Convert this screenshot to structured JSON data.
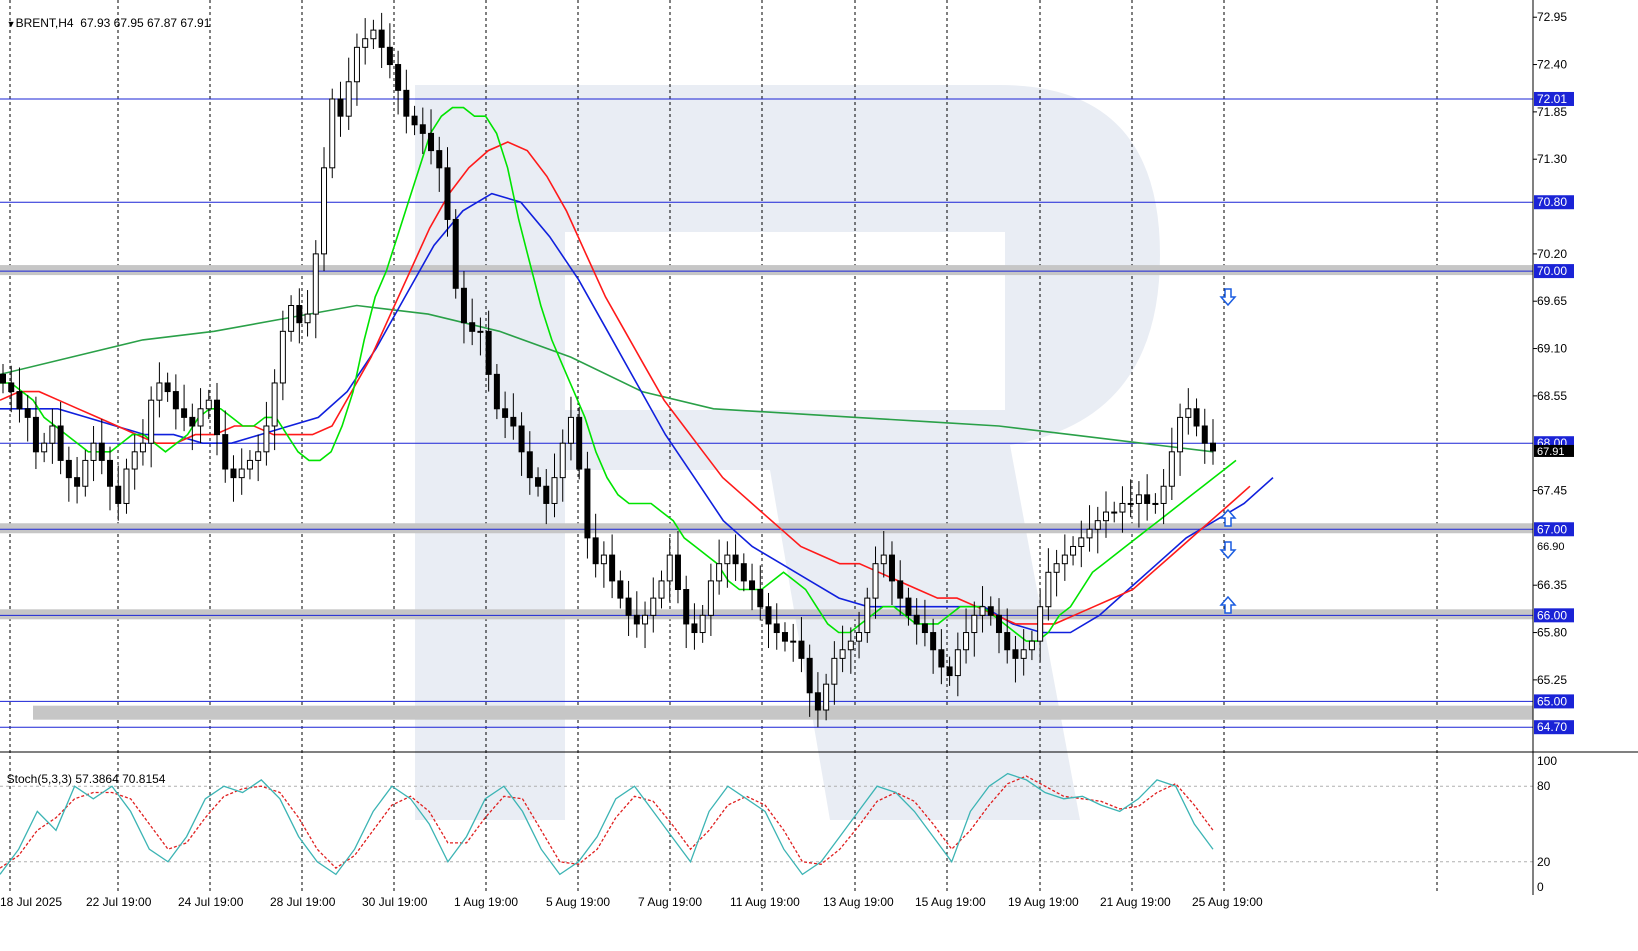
{
  "header": {
    "arrow": "▼",
    "symbol": "BRENT,H4",
    "ohlc": "67.93 67.95 67.87 67.91"
  },
  "indicator": {
    "label": "Stoch(5,3,3)",
    "values": "57.3864 70.8154"
  },
  "colors": {
    "grid_dash": "#000000",
    "hline": "#1a23d6",
    "zone": "#c6c6c6",
    "bull_fill": "#ffffff",
    "bear_fill": "#000000",
    "ma_green": "#00e400",
    "ma_red": "#ff1a1a",
    "ma_blue": "#1020dd",
    "ma_long": "#2aa048",
    "stoch_main": "#3cb4b4",
    "stoch_signal": "#e02020",
    "arrow": "#1a5ce0",
    "watermark": "#e9edf4"
  },
  "chart_data": {
    "type": "candlestick",
    "symbol": "BRENT",
    "timeframe": "H4",
    "y_ticks": [
      "72.95",
      "72.40",
      "71.85",
      "71.30",
      "70.20",
      "69.65",
      "69.10",
      "68.55",
      "67.45",
      "66.35",
      "65.80",
      "65.25"
    ],
    "ylim": [
      64.47,
      73.15
    ],
    "x_ticks": [
      "18 Jul 2025",
      "22 Jul 19:00",
      "24 Jul 19:00",
      "28 Jul 19:00",
      "30 Jul 19:00",
      "1 Aug 19:00",
      "5 Aug 19:00",
      "7 Aug 19:00",
      "11 Aug 19:00",
      "13 Aug 19:00",
      "15 Aug 19:00",
      "19 Aug 19:00",
      "21 Aug 19:00",
      "25 Aug 19:00"
    ],
    "levels": [
      {
        "value": 72.0,
        "label": "72.01",
        "type": "line"
      },
      {
        "value": 70.8,
        "label": "70.80",
        "type": "line"
      },
      {
        "value": 70.0,
        "label": "70.00",
        "type": "zone"
      },
      {
        "value": 68.0,
        "label": "68.00",
        "type": "line"
      },
      {
        "value": 67.0,
        "label": "67.00",
        "type": "zone"
      },
      {
        "value": 66.0,
        "label": "66.00",
        "type": "zone"
      },
      {
        "value": 65.0,
        "label": "65.00",
        "type": "line"
      },
      {
        "value": 64.7,
        "label": "64.70",
        "type": "line"
      }
    ],
    "current_price": "67.91",
    "extra_axis_label": "66.90",
    "candles_close": [
      68.7,
      68.6,
      68.4,
      68.3,
      67.9,
      68.0,
      68.2,
      67.8,
      67.6,
      67.5,
      67.8,
      68.0,
      67.8,
      67.5,
      67.3,
      67.7,
      67.9,
      68.0,
      68.5,
      68.7,
      68.6,
      68.4,
      68.3,
      68.2,
      68.4,
      68.5,
      68.1,
      67.7,
      67.6,
      67.7,
      67.8,
      67.9,
      68.2,
      68.7,
      69.3,
      69.6,
      69.4,
      69.5,
      70.2,
      71.2,
      72.0,
      71.8,
      72.2,
      72.6,
      72.7,
      72.8,
      72.6,
      72.4,
      72.1,
      71.8,
      71.7,
      71.6,
      71.4,
      71.2,
      70.6,
      69.8,
      69.4,
      69.3,
      69.3,
      68.8,
      68.4,
      68.3,
      68.2,
      67.9,
      67.6,
      67.5,
      67.3,
      67.6,
      68.0,
      68.3,
      67.7,
      66.9,
      66.6,
      66.7,
      66.4,
      66.2,
      66.0,
      65.9,
      66.0,
      66.2,
      66.4,
      66.7,
      66.3,
      65.9,
      65.8,
      66.0,
      66.4,
      66.6,
      66.7,
      66.6,
      66.4,
      66.3,
      66.1,
      65.9,
      65.8,
      65.7,
      65.7,
      65.5,
      65.1,
      64.9,
      65.2,
      65.5,
      65.6,
      65.7,
      65.8,
      66.2,
      66.6,
      66.7,
      66.4,
      66.2,
      66.0,
      65.9,
      65.8,
      65.6,
      65.4,
      65.3,
      65.6,
      65.8,
      66.0,
      66.1,
      66.0,
      65.8,
      65.6,
      65.5,
      65.6,
      65.7,
      66.1,
      66.5,
      66.6,
      66.7,
      66.8,
      66.9,
      67.0,
      67.1,
      67.2,
      67.2,
      67.3,
      67.3,
      67.4,
      67.3,
      67.3,
      67.5,
      67.9,
      68.3,
      68.4,
      68.2,
      68.0,
      67.91
    ],
    "ma_green": [
      68.7,
      68.7,
      68.6,
      68.5,
      68.3,
      68.2,
      68.1,
      68.0,
      67.9,
      67.9,
      67.9,
      68.0,
      68.1,
      68.1,
      68.0,
      67.9,
      68.0,
      68.1,
      68.3,
      68.4,
      68.4,
      68.3,
      68.2,
      68.2,
      68.3,
      68.3,
      68.1,
      67.9,
      67.8,
      67.8,
      67.9,
      68.2,
      68.6,
      69.2,
      69.7,
      70.0,
      70.4,
      70.8,
      71.2,
      71.6,
      71.8,
      71.9,
      71.9,
      71.8,
      71.8,
      71.6,
      71.2,
      70.6,
      70.1,
      69.6,
      69.2,
      68.9,
      68.6,
      68.3,
      67.9,
      67.6,
      67.4,
      67.3,
      67.3,
      67.3,
      67.2,
      67.1,
      66.9,
      66.8,
      66.7,
      66.6,
      66.4,
      66.3,
      66.3,
      66.3,
      66.4,
      66.5,
      66.4,
      66.3,
      66.1,
      65.9,
      65.8,
      65.8,
      65.9,
      66.0,
      66.1,
      66.1,
      66.0,
      65.9,
      65.9,
      65.9,
      66.0,
      66.1,
      66.1,
      66.1,
      66.0,
      65.9,
      65.8,
      65.7,
      65.7,
      65.8,
      66.0,
      66.1,
      66.3,
      66.5,
      66.6,
      66.7,
      66.8,
      66.9,
      67.0,
      67.1,
      67.2,
      67.3,
      67.4,
      67.5,
      67.6,
      67.7,
      67.8
    ],
    "ma_red": [
      68.5,
      68.6,
      68.6,
      68.5,
      68.4,
      68.3,
      68.2,
      68.1,
      68.0,
      68.0,
      68.1,
      68.1,
      68.2,
      68.2,
      68.1,
      68.1,
      68.1,
      68.2,
      68.6,
      69.0,
      69.5,
      70.0,
      70.5,
      70.9,
      71.2,
      71.4,
      71.5,
      71.4,
      71.1,
      70.7,
      70.2,
      69.7,
      69.3,
      68.9,
      68.5,
      68.2,
      67.9,
      67.6,
      67.4,
      67.2,
      67.0,
      66.8,
      66.7,
      66.6,
      66.6,
      66.5,
      66.4,
      66.3,
      66.2,
      66.2,
      66.1,
      66.0,
      65.9,
      65.9,
      65.9,
      66.0,
      66.1,
      66.2,
      66.3,
      66.5,
      66.7,
      66.9,
      67.1,
      67.3,
      67.5
    ],
    "ma_blue": [
      68.4,
      68.4,
      68.4,
      68.3,
      68.2,
      68.1,
      68.1,
      68.0,
      68.0,
      68.1,
      68.2,
      68.3,
      68.6,
      69.1,
      69.7,
      70.3,
      70.7,
      70.9,
      70.8,
      70.4,
      69.9,
      69.3,
      68.7,
      68.1,
      67.6,
      67.1,
      66.8,
      66.6,
      66.4,
      66.2,
      66.1,
      66.1,
      66.1,
      66.1,
      66.1,
      65.9,
      65.8,
      65.8,
      66.0,
      66.3,
      66.6,
      66.9,
      67.1,
      67.3,
      67.6
    ],
    "ma_long": [
      68.8,
      69.0,
      69.2,
      69.3,
      69.45,
      69.6,
      69.5,
      69.3,
      69.0,
      68.6,
      68.4,
      68.35,
      68.3,
      68.25,
      68.2,
      68.1,
      68.0,
      67.9
    ],
    "stoch_k": [
      10,
      30,
      60,
      45,
      80,
      70,
      80,
      60,
      30,
      20,
      40,
      70,
      80,
      75,
      85,
      70,
      40,
      20,
      10,
      30,
      60,
      80,
      70,
      50,
      20,
      40,
      70,
      80,
      60,
      30,
      10,
      20,
      40,
      70,
      80,
      60,
      40,
      20,
      60,
      80,
      70,
      60,
      30,
      10,
      20,
      40,
      60,
      80,
      75,
      60,
      40,
      20,
      60,
      80,
      90,
      85,
      75,
      70,
      72,
      65,
      60,
      70,
      85,
      80,
      50,
      30
    ],
    "stoch_d": [
      15,
      25,
      45,
      55,
      70,
      75,
      75,
      70,
      50,
      30,
      35,
      55,
      72,
      78,
      80,
      75,
      55,
      30,
      15,
      25,
      45,
      65,
      72,
      60,
      35,
      35,
      55,
      72,
      70,
      45,
      20,
      18,
      30,
      55,
      72,
      68,
      50,
      30,
      45,
      65,
      72,
      65,
      45,
      20,
      18,
      30,
      48,
      68,
      75,
      68,
      50,
      30,
      45,
      65,
      82,
      88,
      80,
      72,
      70,
      68,
      62,
      64,
      75,
      82,
      65,
      45
    ]
  }
}
